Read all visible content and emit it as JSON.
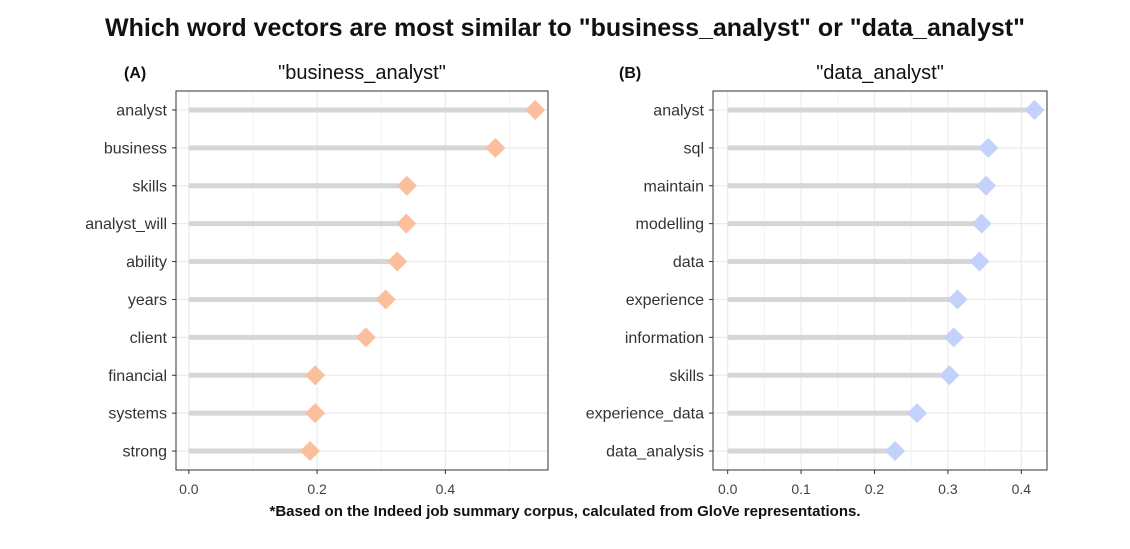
{
  "title": "Which word vectors are most similar to \"business_analyst\" or \"data_analyst\"",
  "footnote": "*Based on the Indeed job summary corpus, calculated from GloVe representations.",
  "colors": {
    "panel_a_point": "#fcbf9e",
    "panel_b_point": "#c2d2fb",
    "stem": "#d6d6d6",
    "grid": "#ebebeb",
    "border": "#333333"
  },
  "chart_data": [
    {
      "type": "lollipop",
      "tag": "(A)",
      "title": "\"business_analyst\"",
      "xlim": [
        -0.02,
        0.56
      ],
      "xticks": [
        0.0,
        0.2,
        0.4
      ],
      "xtick_labels": [
        "0.0",
        "0.2",
        "0.4"
      ],
      "grid": true,
      "categories": [
        "analyst",
        "business",
        "skills",
        "analyst_will",
        "ability",
        "years",
        "client",
        "financial",
        "systems",
        "strong"
      ],
      "values": [
        0.54,
        0.478,
        0.34,
        0.339,
        0.325,
        0.307,
        0.276,
        0.197,
        0.197,
        0.189
      ]
    },
    {
      "type": "lollipop",
      "tag": "(B)",
      "title": "\"data_analyst\"",
      "xlim": [
        -0.02,
        0.435
      ],
      "xticks": [
        0.0,
        0.1,
        0.2,
        0.3,
        0.4
      ],
      "xtick_labels": [
        "0.0",
        "0.1",
        "0.2",
        "0.3",
        "0.4"
      ],
      "grid": true,
      "categories": [
        "analyst",
        "sql",
        "maintain",
        "modelling",
        "data",
        "experience",
        "information",
        "skills",
        "experience_data",
        "data_analysis"
      ],
      "values": [
        0.418,
        0.355,
        0.352,
        0.346,
        0.343,
        0.313,
        0.308,
        0.302,
        0.258,
        0.228
      ]
    }
  ]
}
